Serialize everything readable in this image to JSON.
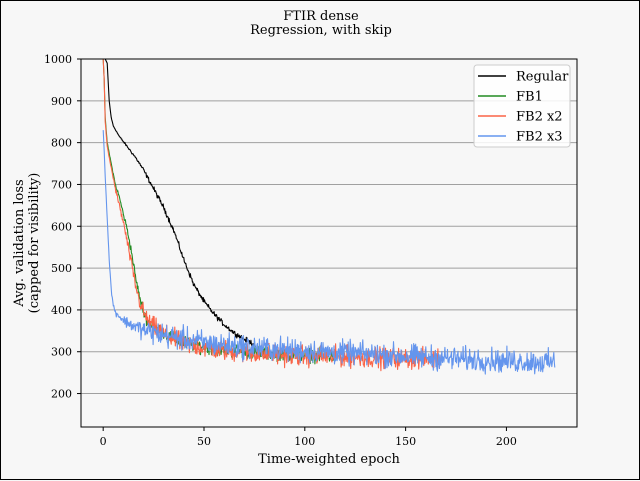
{
  "chart_data": {
    "type": "line",
    "title": "FTIR dense",
    "subtitle": "Regression, with skip",
    "xlabel": "Time-weighted epoch",
    "ylabel_line1": "Avg. validation loss",
    "ylabel_line2": "(capped for visibility)",
    "xlim": [
      -11,
      235
    ],
    "ylim": [
      120,
      1000
    ],
    "x_ticks": [
      0,
      50,
      100,
      150,
      200
    ],
    "y_ticks": [
      200,
      300,
      400,
      500,
      600,
      700,
      800,
      900,
      1000
    ],
    "grid": "horizontal",
    "legend_position": "top-right",
    "series": [
      {
        "name": "Regular",
        "color": "#000000",
        "x_range": [
          1,
          75
        ],
        "noise": 3,
        "points": [
          [
            1,
            1000
          ],
          [
            2,
            990
          ],
          [
            3,
            900
          ],
          [
            4,
            860
          ],
          [
            5,
            840
          ],
          [
            8,
            815
          ],
          [
            12,
            790
          ],
          [
            16,
            765
          ],
          [
            20,
            735
          ],
          [
            25,
            690
          ],
          [
            30,
            645
          ],
          [
            35,
            590
          ],
          [
            40,
            520
          ],
          [
            45,
            460
          ],
          [
            50,
            420
          ],
          [
            55,
            390
          ],
          [
            60,
            365
          ],
          [
            65,
            345
          ],
          [
            70,
            330
          ],
          [
            75,
            318
          ]
        ]
      },
      {
        "name": "FB1",
        "color": "#228b22",
        "x_range": [
          0,
          115
        ],
        "noise": 8,
        "points": [
          [
            0,
            1000
          ],
          [
            0.5,
            950
          ],
          [
            1,
            860
          ],
          [
            2,
            800
          ],
          [
            4,
            750
          ],
          [
            6,
            700
          ],
          [
            8,
            670
          ],
          [
            10,
            630
          ],
          [
            12,
            590
          ],
          [
            14,
            540
          ],
          [
            16,
            480
          ],
          [
            18,
            430
          ],
          [
            20,
            395
          ],
          [
            22,
            375
          ],
          [
            25,
            360
          ],
          [
            30,
            345
          ],
          [
            35,
            330
          ],
          [
            40,
            322
          ],
          [
            50,
            312
          ],
          [
            60,
            305
          ],
          [
            70,
            300
          ],
          [
            80,
            297
          ],
          [
            90,
            295
          ],
          [
            100,
            292
          ],
          [
            110,
            290
          ],
          [
            115,
            289
          ]
        ]
      },
      {
        "name": "FB2 x2",
        "color": "#fa6447",
        "x_range": [
          0,
          168
        ],
        "noise": 12,
        "points": [
          [
            0,
            1000
          ],
          [
            0.5,
            950
          ],
          [
            1,
            850
          ],
          [
            2,
            790
          ],
          [
            4,
            740
          ],
          [
            6,
            690
          ],
          [
            8,
            650
          ],
          [
            10,
            610
          ],
          [
            12,
            560
          ],
          [
            14,
            510
          ],
          [
            16,
            460
          ],
          [
            18,
            420
          ],
          [
            20,
            395
          ],
          [
            22,
            375
          ],
          [
            25,
            358
          ],
          [
            30,
            342
          ],
          [
            35,
            330
          ],
          [
            40,
            320
          ],
          [
            50,
            310
          ],
          [
            60,
            303
          ],
          [
            70,
            298
          ],
          [
            80,
            295
          ],
          [
            90,
            292
          ],
          [
            100,
            290
          ],
          [
            120,
            288
          ],
          [
            140,
            285
          ],
          [
            160,
            283
          ],
          [
            168,
            282
          ]
        ]
      },
      {
        "name": "FB2 x3",
        "color": "#6495ed",
        "x_range": [
          0,
          224
        ],
        "noise": 14,
        "points": [
          [
            0,
            830
          ],
          [
            0.5,
            780
          ],
          [
            1,
            720
          ],
          [
            2,
            620
          ],
          [
            3,
            520
          ],
          [
            4,
            450
          ],
          [
            5,
            410
          ],
          [
            6,
            395
          ],
          [
            8,
            385
          ],
          [
            10,
            375
          ],
          [
            15,
            362
          ],
          [
            20,
            352
          ],
          [
            30,
            340
          ],
          [
            40,
            330
          ],
          [
            50,
            322
          ],
          [
            60,
            316
          ],
          [
            80,
            308
          ],
          [
            100,
            302
          ],
          [
            120,
            297
          ],
          [
            140,
            292
          ],
          [
            160,
            287
          ],
          [
            180,
            282
          ],
          [
            200,
            278
          ],
          [
            224,
            274
          ]
        ]
      }
    ]
  }
}
